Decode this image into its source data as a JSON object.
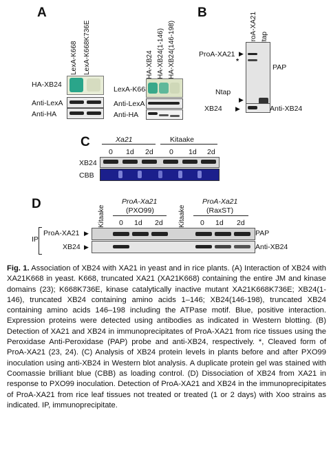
{
  "panel_a": {
    "label": "A",
    "left_cols": [
      "LexA-K668",
      "LexA-K668K736E"
    ],
    "right_cols": [
      "HA-XB24",
      "HA-XB24(1-146)",
      "HA-XB24(146-198)"
    ],
    "row_left_main": "HA-XB24",
    "row_lexa": "Anti-LexA",
    "row_ha": "Anti-HA",
    "row_right_main": "LexA-K668"
  },
  "panel_b": {
    "label": "B",
    "cols": [
      "ProA-XA21",
      "Ntap"
    ],
    "row_proa": "ProA-XA21",
    "star": "*",
    "row_ntap": "Ntap",
    "row_xb24": "XB24",
    "probe_top": "PAP",
    "probe_bottom": "Anti-XB24"
  },
  "panel_c": {
    "label": "C",
    "group_left": "Xa21",
    "group_right": "Kitaake",
    "times": [
      "0",
      "1d",
      "2d",
      "0",
      "1d",
      "2d"
    ],
    "row_xb24": "XB24",
    "row_cbb": "CBB"
  },
  "panel_d": {
    "label": "D",
    "kitaake1": "Kitaake",
    "group1_title": "ProA-Xa21",
    "group1_sub": "(PXO99)",
    "kitaake2": "Kitaake",
    "group2_title": "ProA-Xa21",
    "group2_sub": "(RaxST)",
    "times": [
      "0",
      "1d",
      "2d",
      "0",
      "1d",
      "2d"
    ],
    "ip": "IP",
    "row_proa": "ProA-XA21",
    "row_xb24": "XB24",
    "probe_top": "PAP",
    "probe_bottom": "Anti-XB24"
  },
  "caption": {
    "title": "Fig. 1.",
    "text": "Association of XB24 with XA21 in yeast and in rice plants. (A) Interaction of XB24 with XA21K668 in yeast. K668, truncated XA21 (XA21K668) containing the entire JM and kinase domains (23); K668K736E, kinase catalytically inactive mutant XA21K668K736E; XB24(1-146), truncated XB24 containing amino acids 1–146; XB24(146-198), truncated XB24 containing amino acids 146–198 including the ATPase motif. Blue, positive interaction. Expression proteins were detected using antibodies as indicated in Western blotting. (B) Detection of XA21 and XB24 in immunoprecipitates of ProA-XA21 from rice tissues using the Peroxidase Anti-Peroxidase (PAP) probe and anti-XB24, respectively. *, Cleaved form of ProA-XA21 (23, 24). (C) Analysis of XB24 protein levels in plants before and after PXO99 inoculation using anti-XB24 in Western blot analysis. A duplicate protein gel was stained with Coomassie brilliant blue (CBB) as loading control. (D) Dissociation of XB24 from XA21 in response to PXO99 inoculation. Detection of ProA-XA21 and XB24 in the immunoprecipitates of ProA-XA21 from rice leaf tissues not treated or treated (1 or 2 days) with Xoo strains as indicated. IP, immunoprecipitate."
  }
}
